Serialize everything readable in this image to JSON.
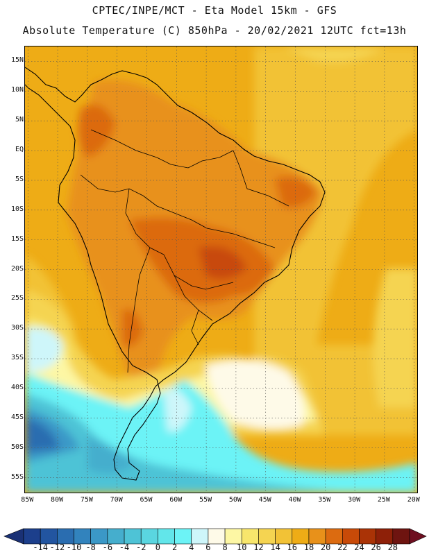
{
  "header": {
    "line1": "CPTEC/INPE/MCT -  Eta Model 15km - GFS",
    "line2": "Absolute Temperature (C) 850hPa - 20/02/2021 12UTC fct=13h"
  },
  "axes": {
    "lat_labels": [
      "15N",
      "10N",
      "5N",
      "EQ",
      "5S",
      "10S",
      "15S",
      "20S",
      "25S",
      "30S",
      "35S",
      "40S",
      "45S",
      "50S",
      "55S"
    ],
    "lon_labels": [
      "85W",
      "80W",
      "75W",
      "70W",
      "65W",
      "60W",
      "55W",
      "50W",
      "45W",
      "40W",
      "35W",
      "30W",
      "25W",
      "20W"
    ],
    "lat_values": [
      15,
      10,
      5,
      0,
      -5,
      -10,
      -15,
      -20,
      -25,
      -30,
      -35,
      -40,
      -45,
      -50,
      -55
    ],
    "lon_values": [
      -85,
      -80,
      -75,
      -70,
      -65,
      -60,
      -55,
      -50,
      -45,
      -40,
      -35,
      -30,
      -25,
      -20
    ],
    "lat_range": [
      -57.5,
      17.5
    ],
    "lon_range": [
      -85.5,
      -19.5
    ],
    "grid": "dotted"
  },
  "colorbar": {
    "labels": [
      "-14",
      "-12",
      "-10",
      "-8",
      "-6",
      "-4",
      "-2",
      "0",
      "2",
      "4",
      "6",
      "8",
      "10",
      "12",
      "14",
      "16",
      "18",
      "20",
      "22",
      "24",
      "26",
      "28"
    ],
    "colors": [
      "#1c3f8c",
      "#2255a0",
      "#2a6db0",
      "#3283bd",
      "#3b98c7",
      "#45aecd",
      "#4ec3d6",
      "#5ad6e0",
      "#62e6ea",
      "#6cf3f6",
      "#cef6fa",
      "#fefae8",
      "#fdf7a4",
      "#f8e66c",
      "#f5d451",
      "#f2c236",
      "#eeac16",
      "#e8911a",
      "#dc6b10",
      "#c84a08",
      "#aa3306",
      "#8e2008",
      "#6e1410"
    ],
    "under_color": "#1a3175",
    "over_color": "#6e0f20"
  }
}
